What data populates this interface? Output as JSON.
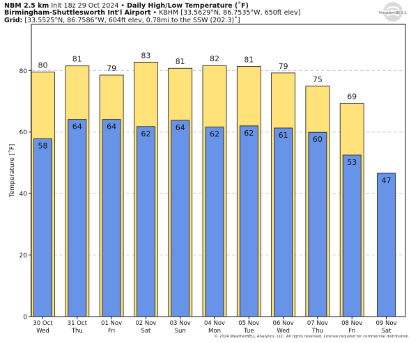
{
  "header": {
    "line1": {
      "model": "NBM 2.5 km",
      "init": "Init 18z 29 Oct 2024",
      "sep": "•",
      "title": "Daily High/Low Temperature (˚F)"
    },
    "line2": {
      "station": "Birmingham-Shuttlesworth Int'l Airport",
      "sep": "•",
      "details": "KBHM [33.5629°N, 86.7535°W, 650ft elev]"
    },
    "line3": {
      "label": "Grid:",
      "details": "[33.5525°N, 86.7586°W, 604ft elev, 0.78mi to the SSW (202.3)˚]"
    }
  },
  "logo": {
    "text": "WeatherBELL"
  },
  "footer": "© 2024 WeatherBELL Analytics, LLC. All rights reserved. License required for commercial distribution.",
  "colors": {
    "high": "#ffe27a",
    "low": "#6793e8",
    "grid": "#c8c8c8",
    "plot_bg": "#ffffff"
  },
  "chart_data": {
    "type": "bar",
    "categories": [
      "30 Oct",
      "31 Oct",
      "01 Nov",
      "02 Nov",
      "03 Nov",
      "04 Nov",
      "05 Nov",
      "06 Nov",
      "07 Nov",
      "08 Nov",
      "09 Nov"
    ],
    "weekdays": [
      "Wed",
      "Thu",
      "Fri",
      "Sat",
      "Sun",
      "Mon",
      "Tue",
      "Wed",
      "Thu",
      "Fri",
      "Sat"
    ],
    "series": [
      {
        "key": "high",
        "values": [
          80,
          81,
          79,
          83,
          81,
          82,
          81,
          79,
          75,
          69,
          null
        ]
      },
      {
        "key": "low",
        "values": [
          58,
          64,
          64,
          62,
          64,
          62,
          62,
          61,
          60,
          53,
          47
        ]
      }
    ],
    "plotted_high": [
      79.5,
      81.5,
      78.5,
      82.7,
      80.7,
      81.6,
      81.3,
      79.2,
      74.9,
      69.3,
      null
    ],
    "plotted_low": [
      57.8,
      64.1,
      64.1,
      61.8,
      63.8,
      61.6,
      62.0,
      61.3,
      59.9,
      52.5,
      46.6
    ],
    "ylabel": "Temperature [˚F]",
    "ylim": [
      0,
      95
    ],
    "yticks": [
      0,
      20,
      40,
      60,
      80
    ],
    "grid": true
  }
}
